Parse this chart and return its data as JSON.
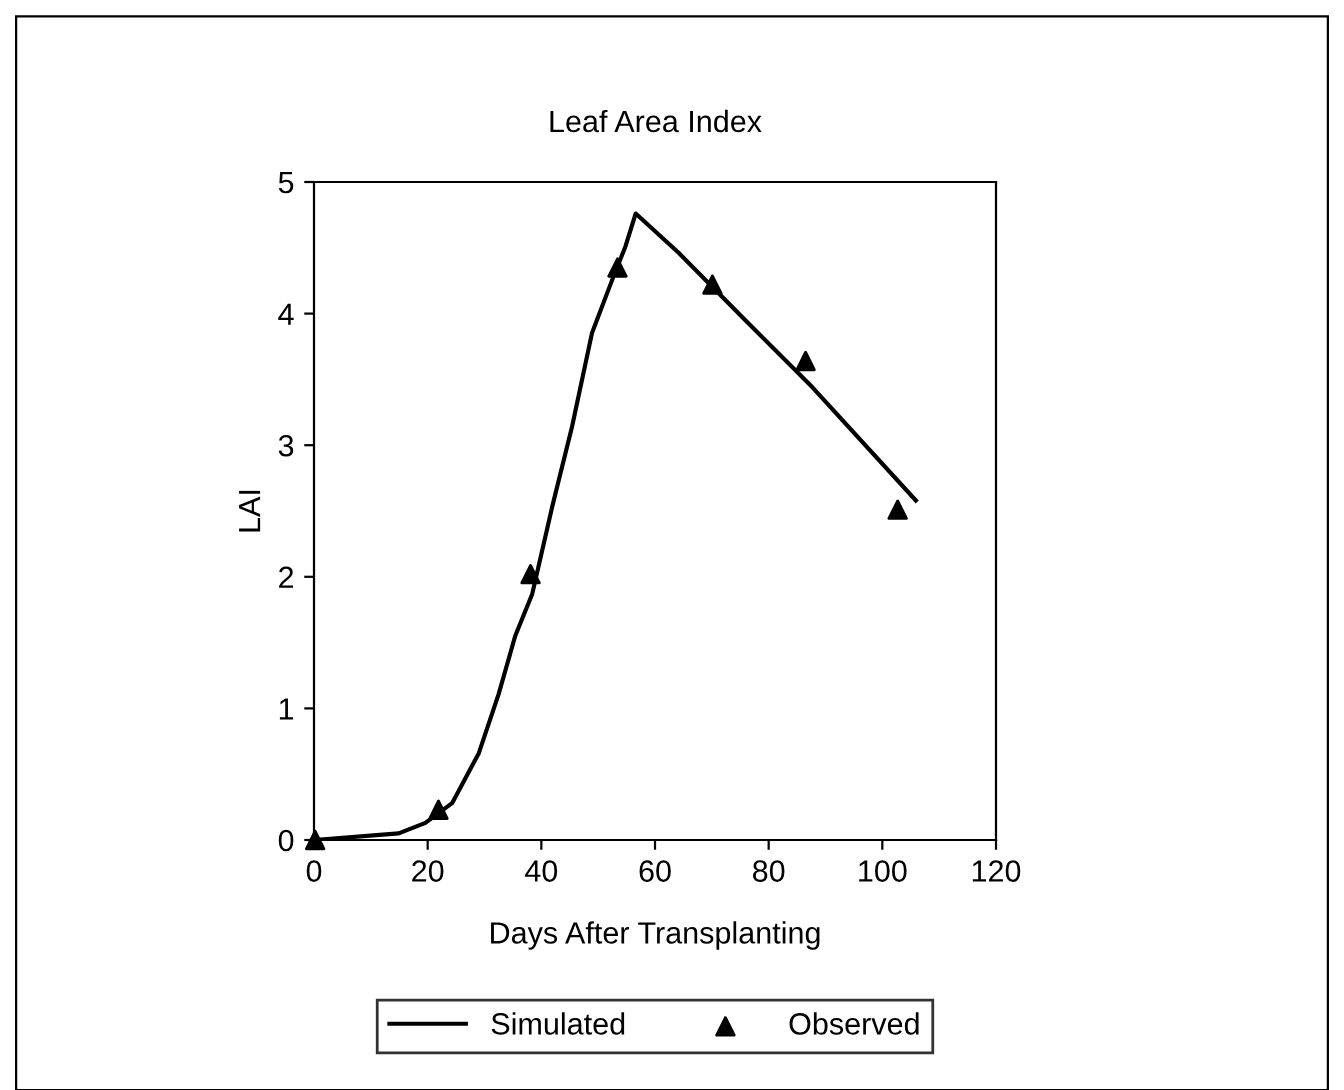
{
  "chart_data": {
    "type": "line",
    "title": "Leaf Area Index",
    "xlabel": "Days After Transplanting",
    "ylabel": "LAI",
    "xlim": [
      0,
      120
    ],
    "xticks": [
      0,
      20,
      40,
      60,
      80,
      100,
      120
    ],
    "ylim": [
      0,
      5
    ],
    "yticks": [
      0,
      1,
      2,
      3,
      4,
      5
    ],
    "grid": false,
    "legend": "bottom",
    "series": [
      {
        "name": "Simulated",
        "color": "#000000",
        "marker": "none",
        "x": [
          0,
          14.9,
          19.6,
          24.3,
          29,
          32.5,
          35.4,
          38.4,
          41.9,
          45.4,
          48.9,
          52.5,
          54.8,
          56.6,
          64.2,
          75.9,
          87.7,
          105.9
        ],
        "values": [
          0,
          0.05,
          0.13,
          0.28,
          0.66,
          1.11,
          1.55,
          1.87,
          2.53,
          3.14,
          3.85,
          4.26,
          4.51,
          4.76,
          4.46,
          3.95,
          3.44,
          2.58
        ]
      },
      {
        "name": "Observed",
        "type": "scatter",
        "color": "#000000",
        "marker": "triangle",
        "x": [
          0.2,
          21.9,
          38.1,
          53.4,
          70.1,
          86.5,
          102.7
        ],
        "values": [
          0,
          0.23,
          2.02,
          4.35,
          4.22,
          3.64,
          2.51
        ]
      }
    ]
  }
}
